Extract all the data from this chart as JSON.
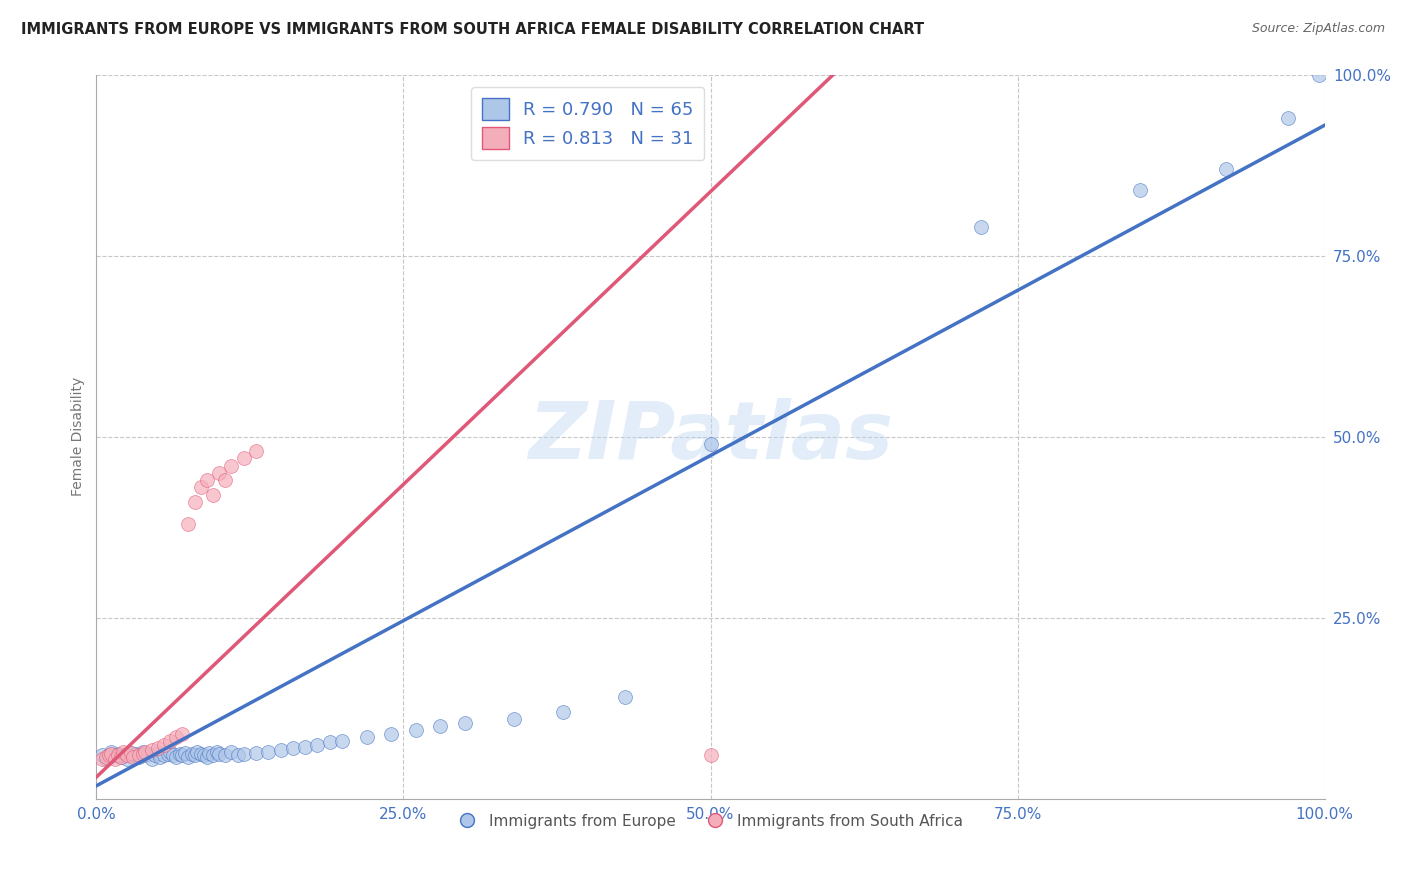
{
  "title": "IMMIGRANTS FROM EUROPE VS IMMIGRANTS FROM SOUTH AFRICA FEMALE DISABILITY CORRELATION CHART",
  "source": "Source: ZipAtlas.com",
  "ylabel": "Female Disability",
  "xlim": [
    0.0,
    1.0
  ],
  "ylim": [
    0.0,
    1.0
  ],
  "xtick_labels": [
    "0.0%",
    "25.0%",
    "50.0%",
    "75.0%",
    "100.0%"
  ],
  "xtick_positions": [
    0.0,
    0.25,
    0.5,
    0.75,
    1.0
  ],
  "ytick_labels": [
    "100.0%",
    "75.0%",
    "50.0%",
    "25.0%"
  ],
  "ytick_positions": [
    1.0,
    0.75,
    0.5,
    0.25
  ],
  "blue_R": 0.79,
  "blue_N": 65,
  "pink_R": 0.813,
  "pink_N": 31,
  "blue_color": "#AEC6E8",
  "pink_color": "#F4AEBB",
  "blue_line_color": "#4472C4",
  "pink_line_color": "#E05878",
  "legend_label_blue": "Immigrants from Europe",
  "legend_label_pink": "Immigrants from South Africa",
  "watermark": "ZIPatlas",
  "background_color": "#ffffff",
  "grid_color": "#c8c8c8",
  "tick_color": "#4472C4",
  "blue_scatter_x": [
    0.005,
    0.008,
    0.01,
    0.012,
    0.015,
    0.018,
    0.02,
    0.022,
    0.025,
    0.028,
    0.03,
    0.032,
    0.035,
    0.038,
    0.04,
    0.042,
    0.045,
    0.048,
    0.05,
    0.052,
    0.055,
    0.058,
    0.06,
    0.062,
    0.065,
    0.068,
    0.07,
    0.072,
    0.075,
    0.078,
    0.08,
    0.082,
    0.085,
    0.088,
    0.09,
    0.092,
    0.095,
    0.098,
    0.1,
    0.105,
    0.11,
    0.115,
    0.12,
    0.13,
    0.14,
    0.15,
    0.16,
    0.17,
    0.18,
    0.19,
    0.2,
    0.22,
    0.24,
    0.26,
    0.28,
    0.3,
    0.34,
    0.38,
    0.43,
    0.5,
    0.72,
    0.85,
    0.92,
    0.97,
    0.995
  ],
  "blue_scatter_y": [
    0.06,
    0.055,
    0.058,
    0.065,
    0.06,
    0.062,
    0.058,
    0.06,
    0.055,
    0.063,
    0.06,
    0.062,
    0.058,
    0.065,
    0.06,
    0.062,
    0.055,
    0.06,
    0.063,
    0.058,
    0.06,
    0.062,
    0.065,
    0.06,
    0.058,
    0.062,
    0.06,
    0.063,
    0.058,
    0.062,
    0.06,
    0.065,
    0.062,
    0.06,
    0.058,
    0.063,
    0.06,
    0.065,
    0.062,
    0.06,
    0.065,
    0.06,
    0.062,
    0.063,
    0.065,
    0.068,
    0.07,
    0.072,
    0.075,
    0.078,
    0.08,
    0.085,
    0.09,
    0.095,
    0.1,
    0.105,
    0.11,
    0.12,
    0.14,
    0.49,
    0.79,
    0.84,
    0.87,
    0.94,
    1.0
  ],
  "pink_scatter_x": [
    0.005,
    0.008,
    0.01,
    0.012,
    0.015,
    0.018,
    0.02,
    0.022,
    0.025,
    0.028,
    0.03,
    0.035,
    0.038,
    0.04,
    0.045,
    0.05,
    0.055,
    0.06,
    0.065,
    0.07,
    0.075,
    0.08,
    0.085,
    0.09,
    0.095,
    0.1,
    0.105,
    0.11,
    0.12,
    0.13,
    0.5
  ],
  "pink_scatter_y": [
    0.055,
    0.058,
    0.06,
    0.062,
    0.055,
    0.06,
    0.058,
    0.065,
    0.06,
    0.063,
    0.058,
    0.06,
    0.062,
    0.065,
    0.068,
    0.07,
    0.075,
    0.08,
    0.085,
    0.09,
    0.38,
    0.41,
    0.43,
    0.44,
    0.42,
    0.45,
    0.44,
    0.46,
    0.47,
    0.48,
    0.06
  ],
  "blue_line_x": [
    0.0,
    1.0
  ],
  "blue_line_y": [
    0.018,
    0.93
  ],
  "pink_line_x": [
    0.0,
    0.6
  ],
  "pink_line_y": [
    0.03,
    1.0
  ]
}
